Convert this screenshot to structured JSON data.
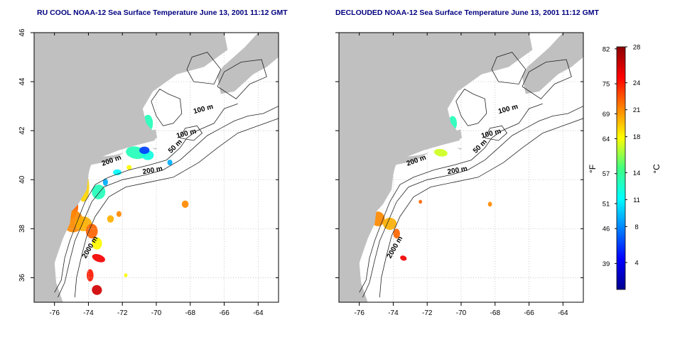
{
  "panels": [
    {
      "title": "RU COOL NOAA-12 Sea Surface Temperature June 13, 2001 11:12 GMT",
      "variant": "raw"
    },
    {
      "title": "DECLOUDED NOAA-12 Sea Surface Temperature June 13, 2001 11:12 GMT",
      "variant": "declouded"
    }
  ],
  "map": {
    "lon_ticks": [
      -76,
      -74,
      -72,
      -70,
      -68,
      -66,
      -64
    ],
    "lon_labels": [
      "-76",
      "-74",
      "-72",
      "-70",
      "-68",
      "-66",
      "-64"
    ],
    "lat_ticks": [
      36,
      38,
      40,
      42,
      44,
      46
    ],
    "lat_labels": [
      "36",
      "38",
      "40",
      "42",
      "44",
      "46"
    ],
    "lon_range": [
      -77.2,
      -62.8
    ],
    "lat_range": [
      35.0,
      46.0
    ],
    "grid": "dotted",
    "land_color": "#c0c0c0",
    "ocean_color": "#ffffff",
    "contour_labels": [
      "100 m",
      "100 m",
      "50 m",
      "200 m",
      "200 m",
      "2000 m"
    ]
  },
  "colorbar": {
    "fahrenheit_labels": [
      "82",
      "75",
      "69",
      "64",
      "57",
      "51",
      "46",
      "39"
    ],
    "celsius_labels": [
      "28",
      "24",
      "21",
      "18",
      "14",
      "11",
      "8",
      "4"
    ],
    "fahrenheit_unit": "°F",
    "celsius_unit": "°C",
    "range_c": [
      1,
      28
    ],
    "colors": [
      "#00008f",
      "#0000ff",
      "#0080ff",
      "#00ffff",
      "#40ff80",
      "#ffff00",
      "#ff8000",
      "#ff0000",
      "#8b0000"
    ]
  }
}
